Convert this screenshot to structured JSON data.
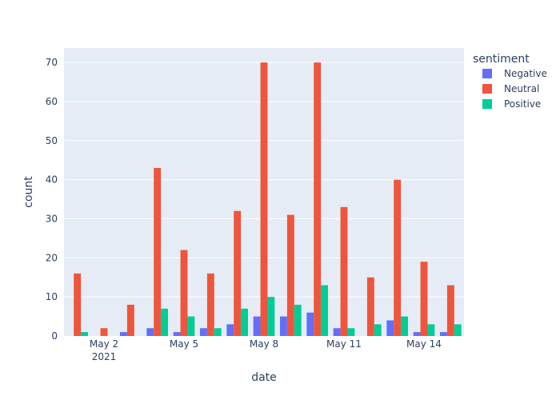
{
  "chart_data": {
    "type": "bar",
    "barmode": "group",
    "xlabel": "date",
    "ylabel": "count",
    "legend_title": "sentiment",
    "legend_position": "top-right",
    "grid": true,
    "ylim": [
      0,
      73.7
    ],
    "y_ticks": [
      0,
      10,
      20,
      30,
      40,
      50,
      60,
      70
    ],
    "x_range": [
      "2021-04-30T12:00",
      "2021-05-15T12:00"
    ],
    "x_ticks": [
      {
        "date": "2021-05-02",
        "label": "May 2",
        "sublabel": "2021"
      },
      {
        "date": "2021-05-05",
        "label": "May 5",
        "sublabel": ""
      },
      {
        "date": "2021-05-08",
        "label": "May 8",
        "sublabel": ""
      },
      {
        "date": "2021-05-11",
        "label": "May 11",
        "sublabel": ""
      },
      {
        "date": "2021-05-14",
        "label": "May 14",
        "sublabel": ""
      }
    ],
    "dates": [
      "2021-05-01",
      "2021-05-02",
      "2021-05-03",
      "2021-05-04",
      "2021-05-05",
      "2021-05-06",
      "2021-05-07",
      "2021-05-08",
      "2021-05-09",
      "2021-05-10",
      "2021-05-11",
      "2021-05-12",
      "2021-05-13",
      "2021-05-14",
      "2021-05-15"
    ],
    "series": [
      {
        "name": "Negative",
        "color": "#636efa",
        "values": [
          0,
          0,
          1,
          2,
          1,
          2,
          3,
          5,
          5,
          6,
          2,
          0,
          4,
          1,
          1
        ]
      },
      {
        "name": "Neutral",
        "color": "#ef553b",
        "values": [
          16,
          2,
          8,
          43,
          22,
          16,
          32,
          70,
          31,
          70,
          33,
          15,
          40,
          19,
          13
        ]
      },
      {
        "name": "Positive",
        "color": "#00cc96",
        "values": [
          1,
          0,
          0,
          7,
          5,
          2,
          7,
          10,
          8,
          13,
          2,
          3,
          5,
          3,
          3
        ]
      }
    ]
  }
}
